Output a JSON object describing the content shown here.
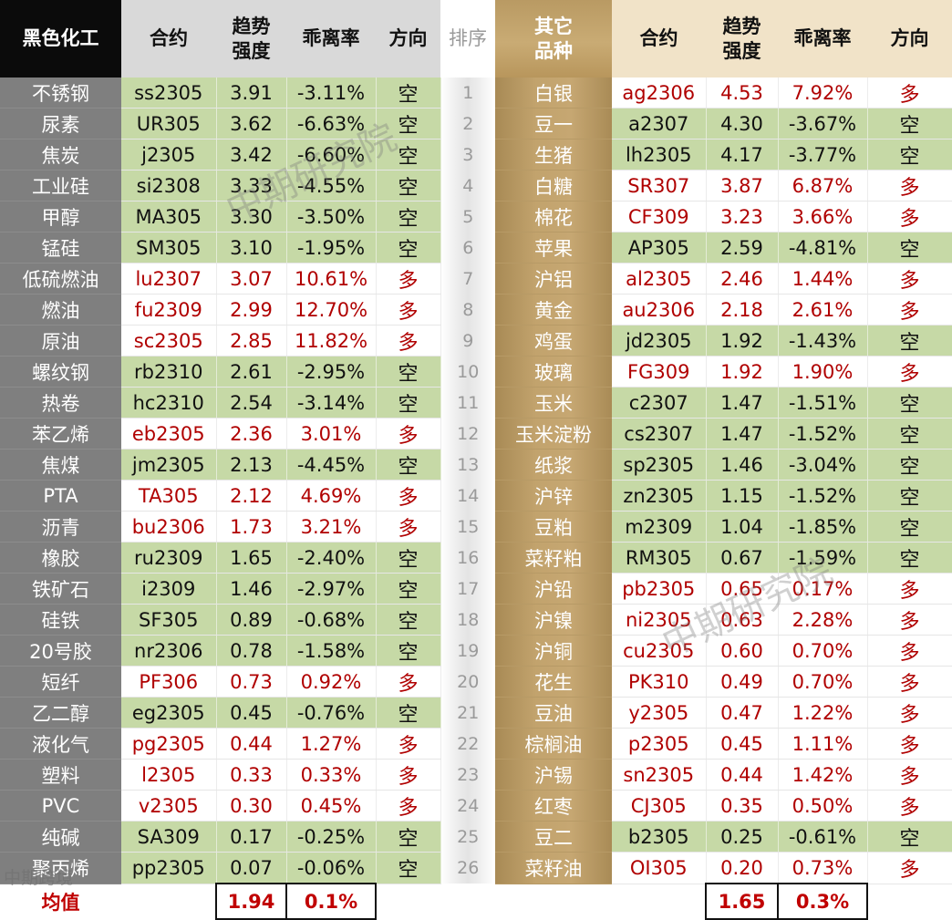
{
  "header": {
    "left_group": "黑色化工",
    "contract": "合约",
    "trend_line1": "趋势",
    "trend_line2": "强度",
    "deviation": "乖离率",
    "direction": "方向",
    "rank": "排序",
    "right_group_line1": "其它",
    "right_group_line2": "品种"
  },
  "left_rows": [
    {
      "name": "不锈钢",
      "contract": "ss2305",
      "trend": "3.91",
      "deviation": "-3.11%",
      "direction": "空"
    },
    {
      "name": "尿素",
      "contract": "UR305",
      "trend": "3.62",
      "deviation": "-6.63%",
      "direction": "空"
    },
    {
      "name": "焦炭",
      "contract": "j2305",
      "trend": "3.42",
      "deviation": "-6.60%",
      "direction": "空"
    },
    {
      "name": "工业硅",
      "contract": "si2308",
      "trend": "3.33",
      "deviation": "-4.55%",
      "direction": "空"
    },
    {
      "name": "甲醇",
      "contract": "MA305",
      "trend": "3.30",
      "deviation": "-3.50%",
      "direction": "空"
    },
    {
      "name": "锰硅",
      "contract": "SM305",
      "trend": "3.10",
      "deviation": "-1.95%",
      "direction": "空"
    },
    {
      "name": "低硫燃油",
      "contract": "lu2307",
      "trend": "3.07",
      "deviation": "10.61%",
      "direction": "多"
    },
    {
      "name": "燃油",
      "contract": "fu2309",
      "trend": "2.99",
      "deviation": "12.70%",
      "direction": "多"
    },
    {
      "name": "原油",
      "contract": "sc2305",
      "trend": "2.85",
      "deviation": "11.82%",
      "direction": "多"
    },
    {
      "name": "螺纹钢",
      "contract": "rb2310",
      "trend": "2.61",
      "deviation": "-2.95%",
      "direction": "空"
    },
    {
      "name": "热卷",
      "contract": "hc2310",
      "trend": "2.54",
      "deviation": "-3.14%",
      "direction": "空"
    },
    {
      "name": "苯乙烯",
      "contract": "eb2305",
      "trend": "2.36",
      "deviation": "3.01%",
      "direction": "多"
    },
    {
      "name": "焦煤",
      "contract": "jm2305",
      "trend": "2.13",
      "deviation": "-4.45%",
      "direction": "空"
    },
    {
      "name": "PTA",
      "contract": "TA305",
      "trend": "2.12",
      "deviation": "4.69%",
      "direction": "多"
    },
    {
      "name": "沥青",
      "contract": "bu2306",
      "trend": "1.73",
      "deviation": "3.21%",
      "direction": "多"
    },
    {
      "name": "橡胶",
      "contract": "ru2309",
      "trend": "1.65",
      "deviation": "-2.40%",
      "direction": "空"
    },
    {
      "name": "铁矿石",
      "contract": "i2309",
      "trend": "1.46",
      "deviation": "-2.97%",
      "direction": "空"
    },
    {
      "name": "硅铁",
      "contract": "SF305",
      "trend": "0.89",
      "deviation": "-0.68%",
      "direction": "空"
    },
    {
      "name": "20号胶",
      "contract": "nr2306",
      "trend": "0.78",
      "deviation": "-1.58%",
      "direction": "空"
    },
    {
      "name": "短纤",
      "contract": "PF306",
      "trend": "0.73",
      "deviation": "0.92%",
      "direction": "多"
    },
    {
      "name": "乙二醇",
      "contract": "eg2305",
      "trend": "0.45",
      "deviation": "-0.76%",
      "direction": "空"
    },
    {
      "name": "液化气",
      "contract": "pg2305",
      "trend": "0.44",
      "deviation": "1.27%",
      "direction": "多"
    },
    {
      "name": "塑料",
      "contract": "l2305",
      "trend": "0.33",
      "deviation": "0.33%",
      "direction": "多"
    },
    {
      "name": "PVC",
      "contract": "v2305",
      "trend": "0.30",
      "deviation": "0.45%",
      "direction": "多"
    },
    {
      "name": "纯碱",
      "contract": "SA309",
      "trend": "0.17",
      "deviation": "-0.25%",
      "direction": "空"
    },
    {
      "name": "聚丙烯",
      "contract": "pp2305",
      "trend": "0.07",
      "deviation": "-0.06%",
      "direction": "空"
    }
  ],
  "right_rows": [
    {
      "rank": "1",
      "name": "白银",
      "contract": "ag2306",
      "trend": "4.53",
      "deviation": "7.92%",
      "direction": "多"
    },
    {
      "rank": "2",
      "name": "豆一",
      "contract": "a2307",
      "trend": "4.30",
      "deviation": "-3.67%",
      "direction": "空"
    },
    {
      "rank": "3",
      "name": "生猪",
      "contract": "lh2305",
      "trend": "4.17",
      "deviation": "-3.77%",
      "direction": "空"
    },
    {
      "rank": "4",
      "name": "白糖",
      "contract": "SR307",
      "trend": "3.87",
      "deviation": "6.87%",
      "direction": "多"
    },
    {
      "rank": "5",
      "name": "棉花",
      "contract": "CF309",
      "trend": "3.23",
      "deviation": "3.66%",
      "direction": "多"
    },
    {
      "rank": "6",
      "name": "苹果",
      "contract": "AP305",
      "trend": "2.59",
      "deviation": "-4.81%",
      "direction": "空"
    },
    {
      "rank": "7",
      "name": "沪铝",
      "contract": "al2305",
      "trend": "2.46",
      "deviation": "1.44%",
      "direction": "多"
    },
    {
      "rank": "8",
      "name": "黄金",
      "contract": "au2306",
      "trend": "2.18",
      "deviation": "2.61%",
      "direction": "多"
    },
    {
      "rank": "9",
      "name": "鸡蛋",
      "contract": "jd2305",
      "trend": "1.92",
      "deviation": "-1.43%",
      "direction": "空"
    },
    {
      "rank": "10",
      "name": "玻璃",
      "contract": "FG309",
      "trend": "1.92",
      "deviation": "1.90%",
      "direction": "多"
    },
    {
      "rank": "11",
      "name": "玉米",
      "contract": "c2307",
      "trend": "1.47",
      "deviation": "-1.51%",
      "direction": "空"
    },
    {
      "rank": "12",
      "name": "玉米淀粉",
      "contract": "cs2307",
      "trend": "1.47",
      "deviation": "-1.52%",
      "direction": "空"
    },
    {
      "rank": "13",
      "name": "纸浆",
      "contract": "sp2305",
      "trend": "1.46",
      "deviation": "-3.04%",
      "direction": "空"
    },
    {
      "rank": "14",
      "name": "沪锌",
      "contract": "zn2305",
      "trend": "1.15",
      "deviation": "-1.52%",
      "direction": "空"
    },
    {
      "rank": "15",
      "name": "豆粕",
      "contract": "m2309",
      "trend": "1.04",
      "deviation": "-1.85%",
      "direction": "空"
    },
    {
      "rank": "16",
      "name": "菜籽粕",
      "contract": "RM305",
      "trend": "0.67",
      "deviation": "-1.59%",
      "direction": "空"
    },
    {
      "rank": "17",
      "name": "沪铅",
      "contract": "pb2305",
      "trend": "0.65",
      "deviation": "0.17%",
      "direction": "多"
    },
    {
      "rank": "18",
      "name": "沪镍",
      "contract": "ni2305",
      "trend": "0.63",
      "deviation": "2.28%",
      "direction": "多"
    },
    {
      "rank": "19",
      "name": "沪铜",
      "contract": "cu2305",
      "trend": "0.60",
      "deviation": "0.70%",
      "direction": "多"
    },
    {
      "rank": "20",
      "name": "花生",
      "contract": "PK310",
      "trend": "0.49",
      "deviation": "0.70%",
      "direction": "多"
    },
    {
      "rank": "21",
      "name": "豆油",
      "contract": "y2305",
      "trend": "0.47",
      "deviation": "1.22%",
      "direction": "多"
    },
    {
      "rank": "22",
      "name": "棕榈油",
      "contract": "p2305",
      "trend": "0.45",
      "deviation": "1.11%",
      "direction": "多"
    },
    {
      "rank": "23",
      "name": "沪锡",
      "contract": "sn2305",
      "trend": "0.44",
      "deviation": "1.42%",
      "direction": "多"
    },
    {
      "rank": "24",
      "name": "红枣",
      "contract": "CJ305",
      "trend": "0.35",
      "deviation": "0.50%",
      "direction": "多"
    },
    {
      "rank": "25",
      "name": "豆二",
      "contract": "b2305",
      "trend": "0.25",
      "deviation": "-0.61%",
      "direction": "空"
    },
    {
      "rank": "26",
      "name": "菜籽油",
      "contract": "OI305",
      "trend": "0.20",
      "deviation": "0.73%",
      "direction": "多"
    }
  ],
  "footer": {
    "label": "均值",
    "left_avg_trend": "1.94",
    "left_avg_deviation": "0.1%",
    "right_avg_trend": "1.65",
    "right_avg_deviation": "0.3%"
  },
  "watermarks": [
    "中期研究院",
    "中期研究院",
    "中期跨境"
  ],
  "colors": {
    "short_row_bg": "#c6d9a6",
    "long_text": "#b00000",
    "left_name_bg": "#7f7f7f",
    "right_name_bg": "#c2a36d",
    "header_dark": "#0b0b0b"
  }
}
